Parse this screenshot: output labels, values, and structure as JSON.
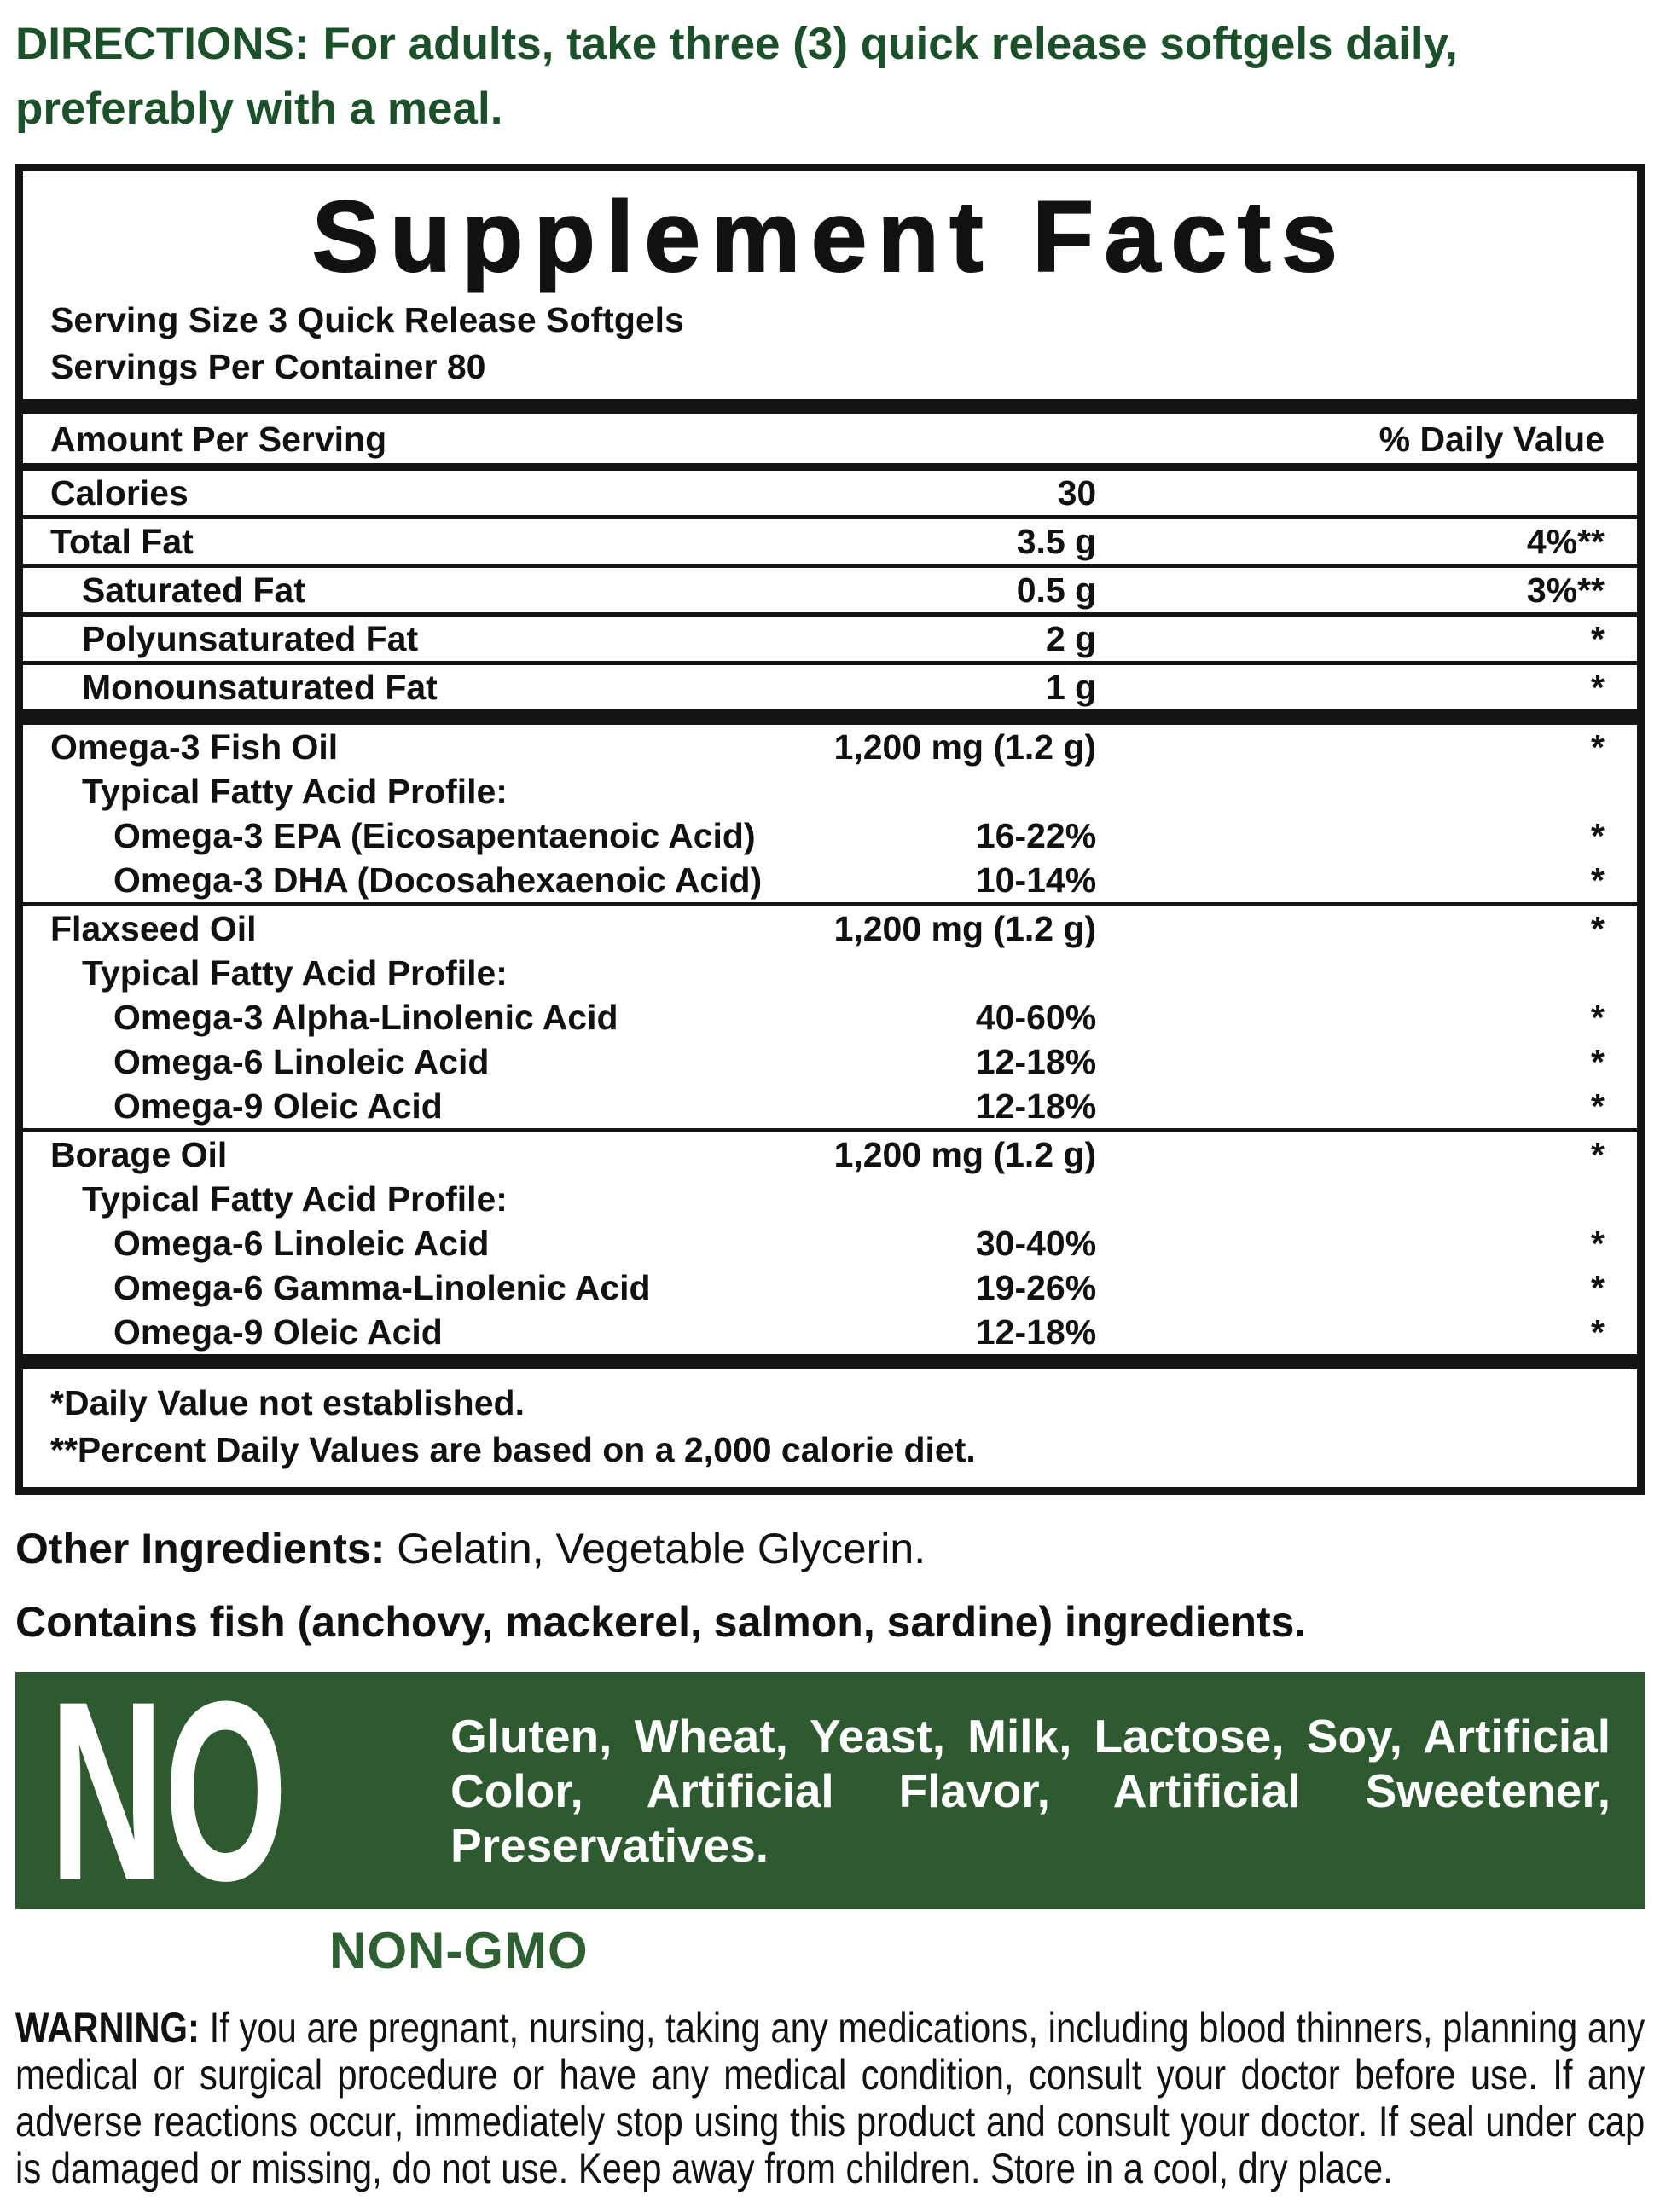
{
  "colors": {
    "green-text": "#1b5128",
    "green-box": "#2d5a2f",
    "green-nongmo": "#2e6132",
    "ink": "#141414"
  },
  "directions": {
    "label": "DIRECTIONS:",
    "text": "For adults, take three (3) quick release softgels daily, preferably with a meal."
  },
  "supplement_facts": {
    "title": "Supplement Facts",
    "serving_size": "Serving Size 3 Quick Release Softgels",
    "servings_per_container": "Servings Per Container 80",
    "header": {
      "amount": "Amount Per Serving",
      "daily_value": "% Daily Value"
    },
    "rows": [
      {
        "name": "Calories",
        "amount": "30",
        "dv": ""
      },
      {
        "name": "Total Fat",
        "amount": "3.5 g",
        "dv": "4%**"
      },
      {
        "name": "Saturated Fat",
        "amount": "0.5 g",
        "dv": "3%**"
      },
      {
        "name": "Polyunsaturated Fat",
        "amount": "2 g",
        "dv": "*"
      },
      {
        "name": "Monounsaturated Fat",
        "amount": "1 g",
        "dv": "*"
      },
      {
        "name": "Omega-3 Fish Oil",
        "amount": "1,200 mg (1.2 g)",
        "dv": "*"
      },
      {
        "name": "Typical Fatty Acid Profile:",
        "amount": "",
        "dv": ""
      },
      {
        "name": "Omega-3 EPA (Eicosapentaenoic Acid)",
        "amount": "16-22%",
        "dv": "*"
      },
      {
        "name": "Omega-3 DHA (Docosahexaenoic Acid)",
        "amount": "10-14%",
        "dv": "*"
      },
      {
        "name": "Flaxseed Oil",
        "amount": "1,200 mg (1.2 g)",
        "dv": "*"
      },
      {
        "name": "Typical Fatty Acid Profile:",
        "amount": "",
        "dv": ""
      },
      {
        "name": "Omega-3  Alpha-Linolenic Acid",
        "amount": "40-60%",
        "dv": "*"
      },
      {
        "name": "Omega-6 Linoleic Acid",
        "amount": "12-18%",
        "dv": "*"
      },
      {
        "name": "Omega-9 Oleic Acid",
        "amount": "12-18%",
        "dv": "*"
      },
      {
        "name": "Borage Oil",
        "amount": "1,200 mg (1.2 g)",
        "dv": "*"
      },
      {
        "name": "Typical Fatty Acid Profile:",
        "amount": "",
        "dv": ""
      },
      {
        "name": "Omega-6 Linoleic Acid",
        "amount": "30-40%",
        "dv": "*"
      },
      {
        "name": "Omega-6 Gamma-Linolenic Acid",
        "amount": "19-26%",
        "dv": "*"
      },
      {
        "name": "Omega-9 Oleic Acid",
        "amount": "12-18%",
        "dv": "*"
      }
    ],
    "footnotes": [
      "*Daily Value not established.",
      "**Percent Daily Values are based on a 2,000 calorie diet."
    ]
  },
  "other_ingredients": {
    "label": "Other Ingredients:",
    "text": "Gelatin, Vegetable Glycerin."
  },
  "allergen": "Contains fish (anchovy, mackerel, salmon, sardine) ingredients.",
  "no_box": {
    "label": "NO",
    "text": "Gluten, Wheat, Yeast, Milk, Lactose, Soy, Artificial Color, Artificial Flavor, Artificial Sweetener, Preservatives."
  },
  "non_gmo": "NON-GMO",
  "warning": {
    "label": "WARNING:",
    "text": "If you are pregnant, nursing, taking any medications, including blood thinners, planning any medical or surgical procedure or have any medical condition, consult your doctor before use. If any adverse reactions occur, immediately stop using this product and consult your doctor. If seal under cap is damaged or missing, do not use. Keep away from children. Store in a cool, dry place."
  }
}
